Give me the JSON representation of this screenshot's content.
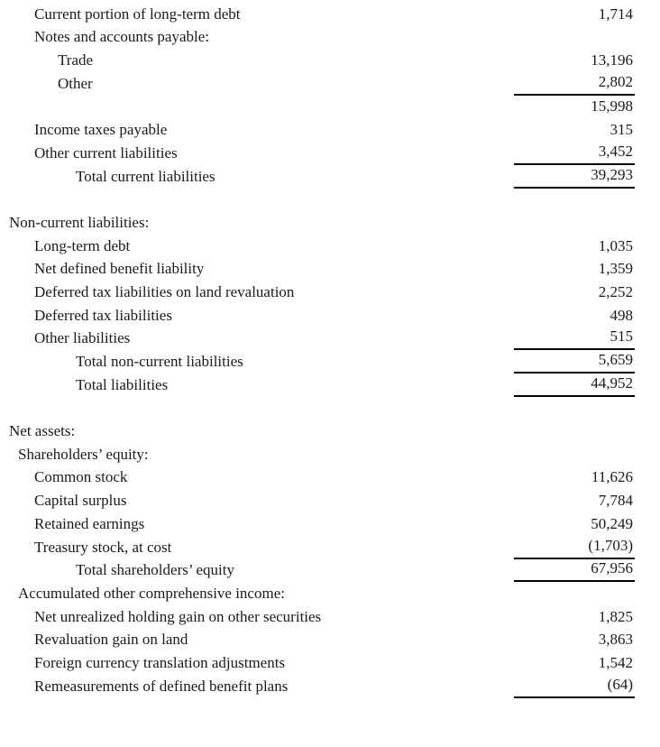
{
  "colors": {
    "background": "#ffffff",
    "text": "#1a1a1a",
    "rule": "#000000"
  },
  "statement": {
    "rows": [
      {
        "label": "Current portion of long-term debt",
        "value": "1,714",
        "indent": 2,
        "rule": false
      },
      {
        "label": "Notes and accounts payable:",
        "value": "",
        "indent": 2,
        "rule": false
      },
      {
        "label": "Trade",
        "value": "13,196",
        "indent": 3,
        "rule": false
      },
      {
        "label": "Other",
        "value": "2,802",
        "indent": 3,
        "rule": true
      },
      {
        "label": "",
        "value": "15,998",
        "indent": 3,
        "rule": false
      },
      {
        "label": "Income taxes payable",
        "value": "315",
        "indent": 2,
        "rule": false
      },
      {
        "label": "Other current liabilities",
        "value": "3,452",
        "indent": 2,
        "rule": true
      },
      {
        "label": "Total current liabilities",
        "value": "39,293",
        "indent": 4,
        "rule": true
      },
      {
        "spacer": true
      },
      {
        "label": "Non-current liabilities:",
        "value": "",
        "indent": 0,
        "rule": false
      },
      {
        "label": "Long-term debt",
        "value": "1,035",
        "indent": 2,
        "rule": false
      },
      {
        "label": "Net defined benefit liability",
        "value": "1,359",
        "indent": 2,
        "rule": false
      },
      {
        "label": "Deferred tax liabilities on land revaluation",
        "value": "2,252",
        "indent": 2,
        "rule": false
      },
      {
        "label": "Deferred tax liabilities",
        "value": "498",
        "indent": 2,
        "rule": false
      },
      {
        "label": "Other liabilities",
        "value": "515",
        "indent": 2,
        "rule": true
      },
      {
        "label": "Total non-current liabilities",
        "value": "5,659",
        "indent": 4,
        "rule": true
      },
      {
        "label": "Total liabilities",
        "value": "44,952",
        "indent": 4,
        "rule": true
      },
      {
        "spacer": true
      },
      {
        "label": "Net assets:",
        "value": "",
        "indent": 0,
        "rule": false
      },
      {
        "label": "Shareholders’ equity:",
        "value": "",
        "indent": 1,
        "rule": false
      },
      {
        "label": "Common stock",
        "value": "11,626",
        "indent": 2,
        "rule": false
      },
      {
        "label": "Capital surplus",
        "value": "7,784",
        "indent": 2,
        "rule": false
      },
      {
        "label": "Retained earnings",
        "value": "50,249",
        "indent": 2,
        "rule": false
      },
      {
        "label": "Treasury stock, at cost",
        "value": "(1,703)",
        "indent": 2,
        "rule": true
      },
      {
        "label": "Total shareholders’ equity",
        "value": "67,956",
        "indent": 4,
        "rule": true
      },
      {
        "label": "Accumulated other comprehensive income:",
        "value": "",
        "indent": 1,
        "rule": false
      },
      {
        "label": "Net unrealized holding gain on other securities",
        "value": "1,825",
        "indent": 2,
        "rule": false
      },
      {
        "label": "Revaluation gain on land",
        "value": "3,863",
        "indent": 2,
        "rule": false
      },
      {
        "label": "Foreign currency translation adjustments",
        "value": "1,542",
        "indent": 2,
        "rule": false
      },
      {
        "label": "Remeasurements of defined benefit plans",
        "value": "(64)",
        "indent": 2,
        "rule": true
      }
    ]
  }
}
